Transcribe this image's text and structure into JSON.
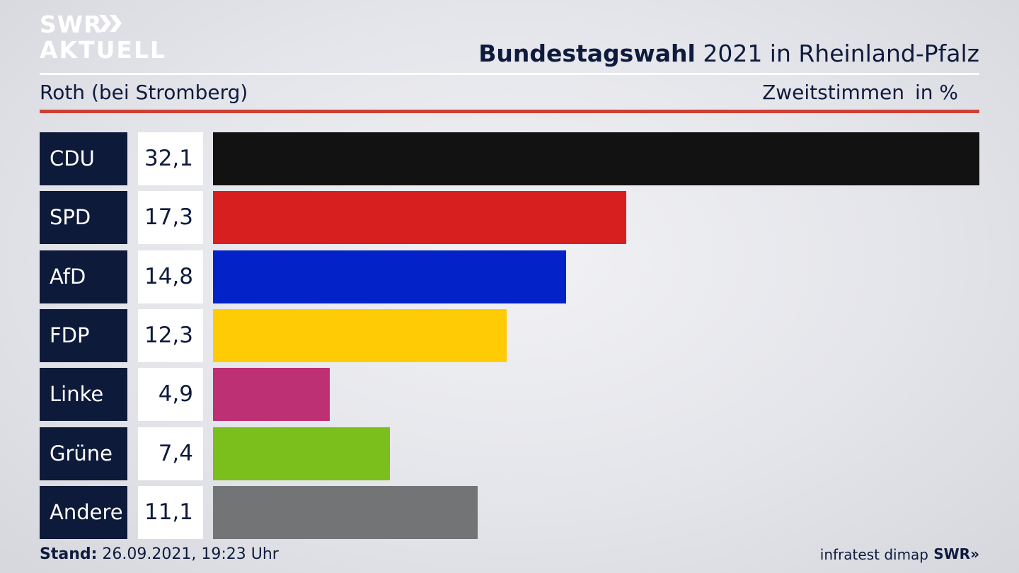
{
  "brand": {
    "logo_line1": "SWR",
    "logo_line2": "AKTUELL",
    "footer_logo": "SWR»"
  },
  "header": {
    "title_bold": "Bundestagswahl",
    "title_rest": " 2021 in Rheinland-Pfalz",
    "location": "Roth (bei Stromberg)",
    "measure": "Zweitstimmen",
    "unit": "in %"
  },
  "colors": {
    "CDU": "#121212",
    "SPD": "#d81f1f",
    "AfD": "#0323c9",
    "FDP": "#fecb05",
    "Linke": "#be3074",
    "Grüne": "#7abf1c",
    "Andere": "#737475",
    "party_box": "#0e1a3a",
    "accent_rule": "#cf3f33"
  },
  "chart_data": {
    "type": "bar",
    "orientation": "horizontal",
    "categories": [
      "CDU",
      "SPD",
      "AfD",
      "FDP",
      "Linke",
      "Grüne",
      "Andere"
    ],
    "values": [
      32.1,
      17.3,
      14.8,
      12.3,
      4.9,
      7.4,
      11.1
    ],
    "value_labels": [
      "32,1",
      "17,3",
      "14,8",
      "12,3",
      "4,9",
      "7,4",
      "11,1"
    ],
    "title": "Bundestagswahl 2021 in Rheinland-Pfalz",
    "subtitle": "Roth (bei Stromberg)",
    "xlabel": "",
    "ylabel": "",
    "xlim": [
      0,
      32.1
    ],
    "grid": false,
    "legend": "none"
  },
  "footer": {
    "stand_label": "Stand:",
    "stand_value": " 26.09.2021, 19:23 Uhr",
    "source": "infratest dimap"
  }
}
